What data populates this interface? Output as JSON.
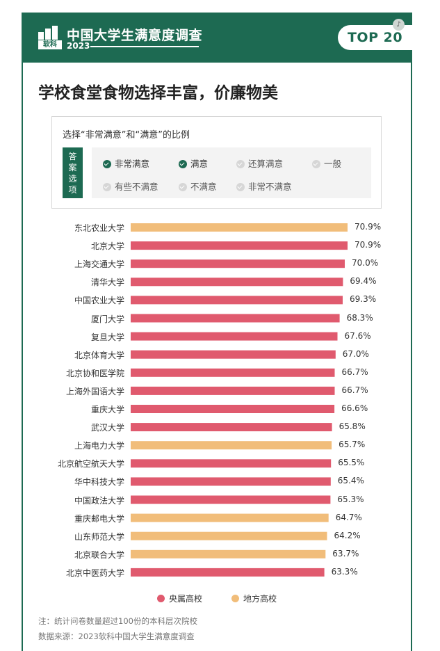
{
  "header": {
    "title": "中国大学生满意度调查",
    "year": "2023",
    "logo_text": "软科",
    "badge": "TOP 20"
  },
  "main_title": "学校食堂食物选择丰富，价廉物美",
  "answer_box": {
    "heading": "选择“非常满意”和“满意”的比例",
    "tag": "答案选项",
    "options": [
      {
        "label": "非常满意",
        "selected": true
      },
      {
        "label": "满意",
        "selected": true
      },
      {
        "label": "还算满意",
        "selected": false
      },
      {
        "label": "一般",
        "selected": false
      },
      {
        "label": "有些不满意",
        "selected": false
      },
      {
        "label": "不满意",
        "selected": false
      },
      {
        "label": "非常不满意",
        "selected": false
      }
    ]
  },
  "colors": {
    "brand": "#1d6a52",
    "central": "#e05a6e",
    "local": "#f1bd7a"
  },
  "chart_data": {
    "type": "bar",
    "orientation": "horizontal",
    "categories": [
      "东北农业大学",
      "北京大学",
      "上海交通大学",
      "清华大学",
      "中国农业大学",
      "厦门大学",
      "复旦大学",
      "北京体育大学",
      "北京协和医学院",
      "上海外国语大学",
      "重庆大学",
      "武汉大学",
      "上海电力大学",
      "北京航空航天大学",
      "华中科技大学",
      "中国政法大学",
      "重庆邮电大学",
      "山东师范大学",
      "北京联合大学",
      "北京中医药大学"
    ],
    "values": [
      70.9,
      70.9,
      70.0,
      69.4,
      69.3,
      68.3,
      67.6,
      67.0,
      66.7,
      66.7,
      66.6,
      65.8,
      65.7,
      65.5,
      65.4,
      65.3,
      64.7,
      64.2,
      63.7,
      63.3
    ],
    "value_labels": [
      "70.9%",
      "70.9%",
      "70.0%",
      "69.4%",
      "69.3%",
      "68.3%",
      "67.6%",
      "67.0%",
      "66.7%",
      "66.7%",
      "66.6%",
      "65.8%",
      "65.7%",
      "65.5%",
      "65.4%",
      "65.3%",
      "64.7%",
      "64.2%",
      "63.7%",
      "63.3%"
    ],
    "groups": [
      "local",
      "central",
      "central",
      "central",
      "central",
      "central",
      "central",
      "central",
      "central",
      "central",
      "central",
      "central",
      "local",
      "central",
      "central",
      "central",
      "local",
      "local",
      "local",
      "central"
    ],
    "legend": [
      {
        "name": "央属高校",
        "key": "central"
      },
      {
        "name": "地方高校",
        "key": "local"
      }
    ],
    "grid": false,
    "legend_position": "bottom"
  },
  "notes": {
    "note": "注：统计问卷数量超过100份的本科层次院校",
    "source": "数据来源：2023软科中国大学生满意度调查"
  }
}
